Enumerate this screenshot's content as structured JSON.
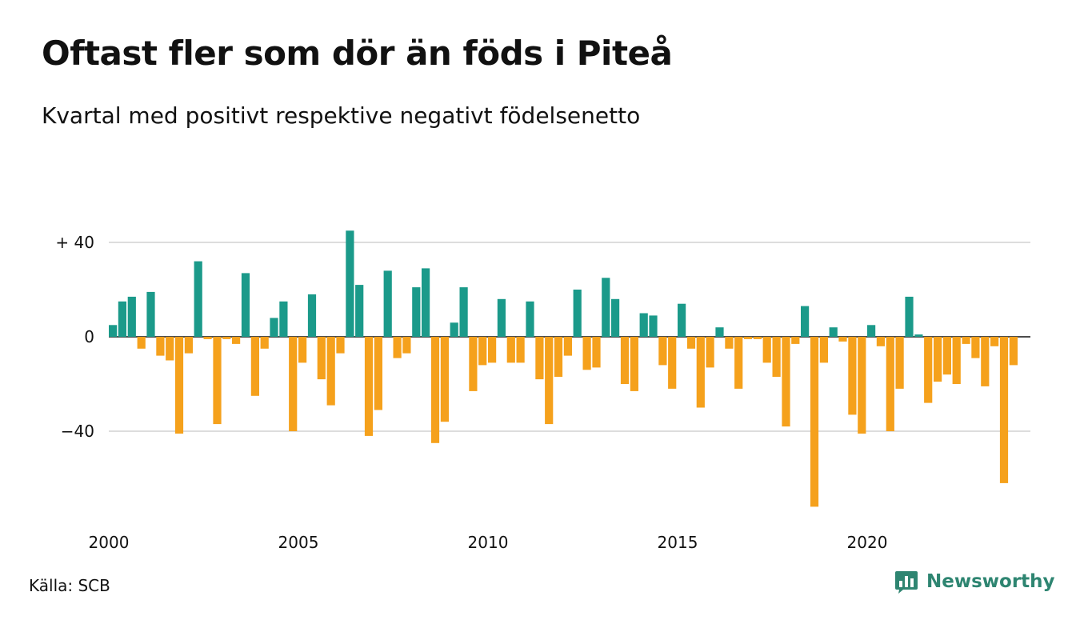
{
  "header": {
    "title": "Oftast fler som dör än föds i Piteå",
    "subtitle": "Kvartal med positivt respektive negativt födelsenetto"
  },
  "footer": {
    "source": "Källa: SCB",
    "brand": "Newsworthy",
    "brand_icon": "bar-chart-speech-bubble-icon"
  },
  "colors": {
    "positive": "#1b9a8a",
    "negative": "#f5a11c",
    "brand": "#2e8571"
  },
  "chart_data": {
    "type": "bar",
    "ylim": [
      -75,
      45
    ],
    "yticks": [
      {
        "value": 40,
        "label": "+ 40"
      },
      {
        "value": 0,
        "label": "0"
      },
      {
        "value": -40,
        "label": "−40"
      }
    ],
    "xticks": [
      "2000",
      "2005",
      "2010",
      "2015",
      "2020"
    ],
    "grid": true,
    "start_year": 2000,
    "values": [
      5,
      15,
      17,
      -5,
      19,
      -8,
      -10,
      -41,
      -7,
      32,
      -1,
      -37,
      -1,
      -3,
      27,
      -25,
      -5,
      8,
      15,
      -40,
      -11,
      18,
      -18,
      -29,
      -7,
      45,
      22,
      -42,
      -31,
      28,
      -9,
      -7,
      21,
      29,
      -45,
      -36,
      6,
      21,
      -23,
      -12,
      -11,
      16,
      -11,
      -11,
      15,
      -18,
      -37,
      -17,
      -8,
      20,
      -14,
      -13,
      25,
      16,
      -20,
      -23,
      10,
      9,
      -12,
      -22,
      14,
      -5,
      -30,
      -13,
      4,
      -5,
      -22,
      -1,
      -1,
      -11,
      -17,
      -38,
      -3,
      13,
      -72,
      -11,
      4,
      -2,
      -33,
      -41,
      5,
      -4,
      -40,
      -22,
      17,
      1,
      -28,
      -19,
      -16,
      -20,
      -3,
      -9,
      -21,
      -4,
      -62,
      -12
    ]
  }
}
